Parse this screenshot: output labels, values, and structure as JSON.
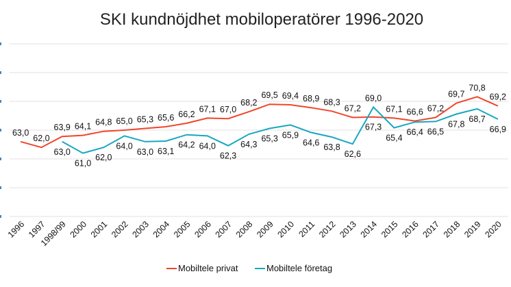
{
  "chart_data": {
    "type": "line",
    "title": "SKI kundnöjdhet mobiloperatörer 1996-2020",
    "xlabel": "",
    "ylabel": "",
    "ylim": [
      50,
      80
    ],
    "yticks": [
      50,
      55,
      60,
      65,
      70,
      75,
      80
    ],
    "grid": true,
    "legend_position": "bottom",
    "categories": [
      "1996",
      "1997",
      "1998/99",
      "2000",
      "2001",
      "2002",
      "2003",
      "2004",
      "2005",
      "2006",
      "2007",
      "2008",
      "2009",
      "2010",
      "2011",
      "2012",
      "2013",
      "2014",
      "2015",
      "2016",
      "2017",
      "2018",
      "2019",
      "2020"
    ],
    "series": [
      {
        "name": "Mobiltele privat",
        "color": "#f0452a",
        "values": [
          63.0,
          62.0,
          63.9,
          64.1,
          64.8,
          65.0,
          65.3,
          65.6,
          66.2,
          67.1,
          67.0,
          68.2,
          69.5,
          69.4,
          68.9,
          68.3,
          67.2,
          67.3,
          67.1,
          66.6,
          67.2,
          69.7,
          70.8,
          69.2
        ],
        "labels": [
          "63,0",
          "62,0",
          "63,9",
          "64,1",
          "64,8",
          "65,0",
          "65,3",
          "65,6",
          "66,2",
          "67,1",
          "67,0",
          "68,2",
          "69,5",
          "69,4",
          "68,9",
          "68,3",
          "67,2",
          "67,3",
          "67,1",
          "66,6",
          "67,2",
          "69,7",
          "70,8",
          "69,2"
        ]
      },
      {
        "name": "Mobiltele företag",
        "color": "#17a6c0",
        "values": [
          null,
          null,
          63.0,
          61.0,
          62.0,
          64.0,
          63.0,
          63.1,
          64.2,
          64.0,
          62.3,
          64.3,
          65.3,
          65.9,
          64.6,
          63.8,
          62.6,
          69.0,
          65.4,
          66.4,
          66.5,
          67.8,
          68.7,
          66.9
        ],
        "labels": [
          null,
          null,
          "63,0",
          "61,0",
          "62,0",
          "64,0",
          "63,0",
          "63,1",
          "64,2",
          "64,0",
          "62,3",
          "64,3",
          "65,3",
          "65,9",
          "64,6",
          "63,8",
          "62,6",
          "69,0",
          "65,4",
          "66,4",
          "66,5",
          "67,8",
          "68,7",
          "66,9"
        ]
      }
    ]
  }
}
